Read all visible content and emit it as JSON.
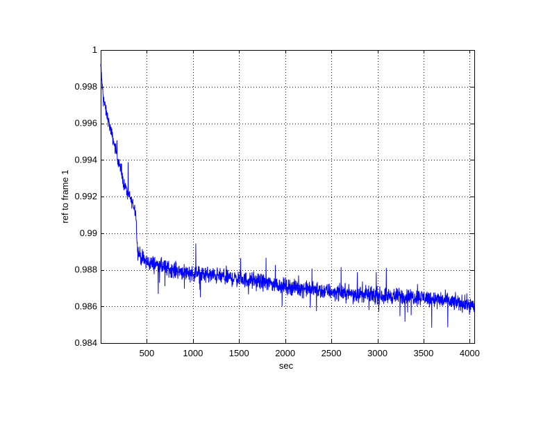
{
  "chart_data": {
    "type": "line",
    "title": "",
    "xlabel": "sec",
    "ylabel": "ref to frame 1",
    "xlim": [
      0,
      4050
    ],
    "ylim": [
      0.984,
      1.0
    ],
    "xticks": [
      500,
      1000,
      1500,
      2000,
      2500,
      3000,
      3500,
      4000
    ],
    "xtick_labels": [
      "500",
      "1000",
      "1500",
      "2000",
      "2500",
      "3000",
      "3500",
      "4000"
    ],
    "yticks": [
      0.984,
      0.986,
      0.988,
      0.99,
      0.992,
      0.994,
      0.996,
      0.998,
      1.0
    ],
    "ytick_labels": [
      "0.984",
      "0.986",
      "0.988",
      "0.99",
      "0.992",
      "0.994",
      "0.996",
      "0.998",
      "1"
    ],
    "grid": true,
    "line_color": "#0000ff",
    "series": [
      {
        "x": [
          0,
          20,
          50,
          100,
          150,
          200,
          250,
          300,
          350,
          380,
          400,
          450,
          500,
          600,
          700,
          800,
          1000,
          1200,
          1500,
          1800,
          2000,
          2500,
          3000,
          3500,
          4000,
          4050
        ],
        "values": [
          0.9992,
          0.9978,
          0.9968,
          0.9958,
          0.9948,
          0.9938,
          0.9927,
          0.9921,
          0.9916,
          0.9912,
          0.989,
          0.9886,
          0.9884,
          0.9883,
          0.9881,
          0.988,
          0.9878,
          0.9877,
          0.9875,
          0.9873,
          0.9871,
          0.9868,
          0.9866,
          0.9865,
          0.9861,
          0.986
        ]
      }
    ]
  }
}
